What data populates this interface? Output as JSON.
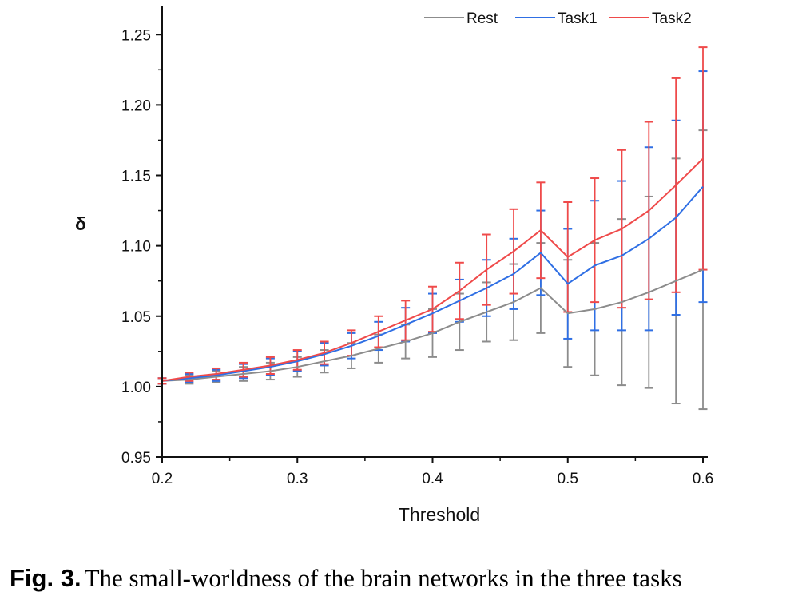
{
  "chart_data": {
    "type": "line",
    "xlabel": "Threshold",
    "ylabel": "δ",
    "xlim": [
      0.2,
      0.6
    ],
    "ylim": [
      0.95,
      1.27
    ],
    "xticks": [
      "0.2",
      "0.3",
      "0.4",
      "0.5",
      "0.6"
    ],
    "yticks": [
      "0.95",
      "1.00",
      "1.05",
      "1.10",
      "1.15",
      "1.20",
      "1.25"
    ],
    "legend_position": "top-right",
    "x": [
      0.2,
      0.22,
      0.24,
      0.26,
      0.28,
      0.3,
      0.32,
      0.34,
      0.36,
      0.38,
      0.4,
      0.42,
      0.44,
      0.46,
      0.48,
      0.5,
      0.52,
      0.54,
      0.56,
      0.58,
      0.6
    ],
    "series": [
      {
        "name": "Rest",
        "color": "#8c8c8c",
        "values": [
          1.004,
          1.005,
          1.007,
          1.009,
          1.011,
          1.014,
          1.018,
          1.022,
          1.027,
          1.032,
          1.038,
          1.046,
          1.053,
          1.06,
          1.07,
          1.052,
          1.055,
          1.06,
          1.067,
          1.075,
          1.083
        ],
        "errors": [
          0.002,
          0.003,
          0.004,
          0.005,
          0.006,
          0.007,
          0.008,
          0.009,
          0.01,
          0.012,
          0.017,
          0.02,
          0.021,
          0.027,
          0.032,
          0.038,
          0.047,
          0.059,
          0.068,
          0.087,
          0.099
        ]
      },
      {
        "name": "Task1",
        "color": "#2f6fe4",
        "values": [
          1.004,
          1.006,
          1.008,
          1.011,
          1.014,
          1.018,
          1.023,
          1.029,
          1.036,
          1.044,
          1.052,
          1.061,
          1.07,
          1.08,
          1.095,
          1.073,
          1.086,
          1.093,
          1.105,
          1.12,
          1.142
        ],
        "errors": [
          0.002,
          0.003,
          0.004,
          0.005,
          0.006,
          0.007,
          0.008,
          0.009,
          0.01,
          0.012,
          0.014,
          0.015,
          0.02,
          0.025,
          0.03,
          0.039,
          0.046,
          0.053,
          0.065,
          0.069,
          0.082
        ]
      },
      {
        "name": "Task2",
        "color": "#ef4a4a",
        "values": [
          1.004,
          1.007,
          1.009,
          1.012,
          1.015,
          1.019,
          1.024,
          1.031,
          1.039,
          1.047,
          1.055,
          1.068,
          1.083,
          1.096,
          1.111,
          1.092,
          1.104,
          1.112,
          1.125,
          1.143,
          1.162
        ],
        "errors": [
          0.002,
          0.003,
          0.004,
          0.005,
          0.006,
          0.007,
          0.008,
          0.009,
          0.011,
          0.014,
          0.016,
          0.02,
          0.025,
          0.03,
          0.034,
          0.039,
          0.044,
          0.056,
          0.063,
          0.076,
          0.079
        ]
      }
    ]
  },
  "caption": {
    "label": "Fig. 3.",
    "text": "The small-worldness of the brain networks in the three tasks"
  }
}
